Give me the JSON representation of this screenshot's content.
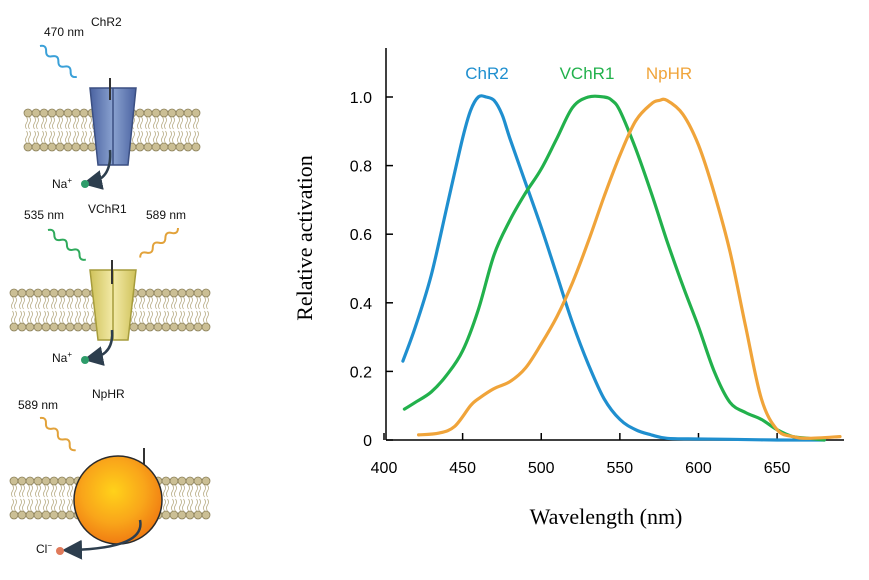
{
  "left_panel": {
    "chr2": {
      "name": "ChR2",
      "wavelength": "470 nm",
      "ion": "Na",
      "ion_charge": "+"
    },
    "vchr1": {
      "name": "VChR1",
      "wavelength_left": "535 nm",
      "wavelength_right": "589 nm",
      "ion": "Na",
      "ion_charge": "+"
    },
    "nphr": {
      "name": "NpHR",
      "wavelength": "589 nm",
      "ion": "Cl",
      "ion_charge": "−"
    }
  },
  "colors": {
    "chr2": "#1f8fcf",
    "vchr1": "#22b14c",
    "nphr": "#f0a43a",
    "axis": "#000000",
    "channel_blue": "#6f86b8",
    "channel_yellow": "#e8dc88",
    "sphere_orange": "#f9a51a",
    "wave_blue": "#3aa0d8",
    "wave_green": "#2faa5c",
    "wave_orange": "#e2a23a"
  },
  "chart_data": {
    "type": "line",
    "xlabel": "Wavelength (nm)",
    "ylabel": "Relative activation",
    "xlim": [
      400,
      690
    ],
    "ylim": [
      0,
      1.0
    ],
    "xticks": [
      400,
      450,
      500,
      550,
      600,
      650
    ],
    "xtick_labels": [
      "400",
      "450",
      "500",
      "550",
      "600",
      "650"
    ],
    "yticks": [
      0,
      0.2,
      0.4,
      0.6,
      0.8,
      1.0
    ],
    "ytick_labels": [
      "0",
      "0.2",
      "0.4",
      "0.6",
      "0.8",
      "1.0"
    ],
    "series": [
      {
        "name": "ChR2",
        "color": "#1f8fcf",
        "x": [
          412,
          420,
          430,
          440,
          450,
          455,
          460,
          465,
          470,
          475,
          480,
          490,
          500,
          510,
          520,
          530,
          540,
          550,
          560,
          570,
          580,
          600,
          620,
          650,
          680
        ],
        "y": [
          0.23,
          0.33,
          0.48,
          0.68,
          0.88,
          0.96,
          1.0,
          1.0,
          0.99,
          0.95,
          0.88,
          0.75,
          0.62,
          0.48,
          0.34,
          0.22,
          0.12,
          0.06,
          0.03,
          0.015,
          0.005,
          0.003,
          0.002,
          0.0,
          0.0
        ]
      },
      {
        "name": "VChR1",
        "color": "#22b14c",
        "x": [
          413,
          420,
          430,
          440,
          450,
          460,
          470,
          480,
          490,
          500,
          510,
          520,
          530,
          540,
          545,
          550,
          560,
          570,
          580,
          590,
          600,
          610,
          620,
          630,
          640,
          650,
          660,
          670,
          680
        ],
        "y": [
          0.09,
          0.11,
          0.14,
          0.19,
          0.26,
          0.38,
          0.54,
          0.64,
          0.72,
          0.79,
          0.88,
          0.97,
          1.0,
          1.0,
          0.99,
          0.96,
          0.85,
          0.72,
          0.58,
          0.45,
          0.33,
          0.2,
          0.11,
          0.08,
          0.06,
          0.03,
          0.01,
          0.005,
          0.0
        ]
      },
      {
        "name": "NpHR",
        "color": "#f0a43a",
        "x": [
          422,
          435,
          445,
          455,
          460,
          470,
          480,
          490,
          500,
          510,
          520,
          530,
          540,
          550,
          560,
          570,
          575,
          580,
          590,
          600,
          610,
          620,
          630,
          640,
          650,
          660,
          670,
          690
        ],
        "y": [
          0.015,
          0.02,
          0.04,
          0.1,
          0.12,
          0.15,
          0.17,
          0.21,
          0.28,
          0.36,
          0.46,
          0.58,
          0.71,
          0.83,
          0.93,
          0.98,
          0.99,
          0.99,
          0.95,
          0.86,
          0.72,
          0.55,
          0.33,
          0.12,
          0.03,
          0.01,
          0.005,
          0.01
        ]
      }
    ],
    "legend": "top"
  }
}
